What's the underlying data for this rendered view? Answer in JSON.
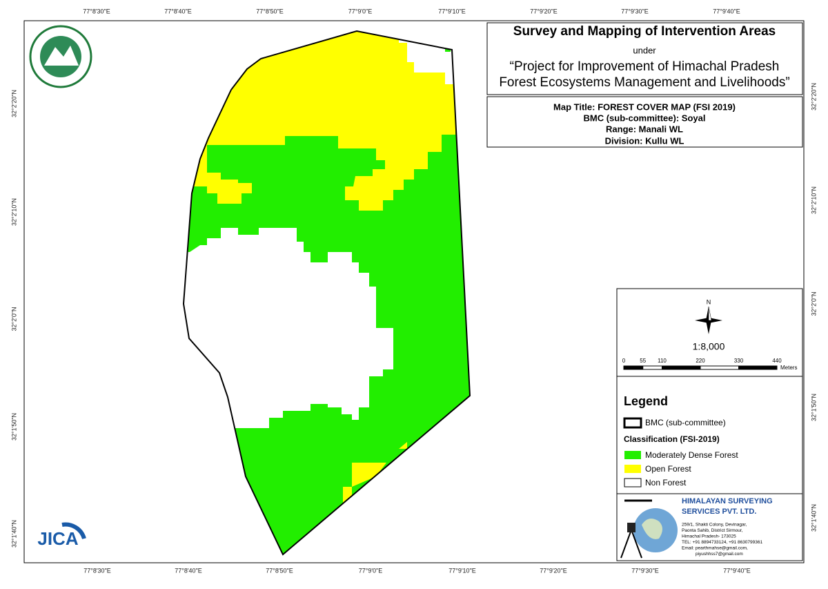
{
  "title_block": {
    "title": "Survey and Mapping of Intervention Areas",
    "under": "under",
    "project_line1": "“Project for Improvement of Himachal Pradesh",
    "project_line2": "Forest Ecosystems Management and Livelihoods”"
  },
  "info_block": {
    "map_title": "Map Title: FOREST COVER MAP (FSI 2019)",
    "bmc": "BMC (sub-committee): Soyal",
    "range": "Range: Manali WL",
    "division": "Division: Kullu WL"
  },
  "grid": {
    "lon_labels": [
      "77°8'30\"E",
      "77°8'40\"E",
      "77°8'50\"E",
      "77°9'0\"E",
      "77°9'10\"E",
      "77°9'20\"E",
      "77°9'30\"E",
      "77°9'40\"E"
    ],
    "lat_labels": [
      "32°2'20\"N",
      "32°2'10\"N",
      "32°2'0\"N",
      "32°1'50\"N",
      "32°1'40\"N"
    ]
  },
  "north": "N",
  "scale": "1:8,000",
  "scale_bar": {
    "ticks": [
      0,
      55,
      110,
      220,
      330,
      440
    ],
    "unit": "Meters"
  },
  "legend": {
    "title": "Legend",
    "boundary": "BMC (sub-committee)",
    "classification": "Classification (FSI-2019)",
    "items": [
      {
        "label": "Moderately Dense Forest",
        "color": "#22ee00"
      },
      {
        "label": "Open Forest",
        "color": "#ffff00"
      },
      {
        "label": "Non Forest",
        "color": "#ffffff"
      }
    ]
  },
  "company": {
    "name1": "HIMALAYAN SURVEYING",
    "name2": "SERVICES PVT. LTD.",
    "address": [
      "259/1, Shakti Colony, Devinagar,",
      "Paonta Sahib, District Sirmour,",
      "Himachal Pradesh- 173025",
      "TEL: +91 8894733124, +91 8630799361",
      "Email: pearthmahse@gmail.com,",
      "piyushhss7@gmail.com"
    ]
  },
  "logo": {
    "jica": "JICA"
  }
}
